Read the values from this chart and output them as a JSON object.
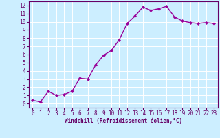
{
  "x": [
    0,
    1,
    2,
    3,
    4,
    5,
    6,
    7,
    8,
    9,
    10,
    11,
    12,
    13,
    14,
    15,
    16,
    17,
    18,
    19,
    20,
    21,
    22,
    23
  ],
  "y": [
    0.4,
    0.2,
    1.5,
    1.0,
    1.1,
    1.5,
    3.1,
    3.0,
    4.7,
    5.9,
    6.5,
    7.8,
    9.8,
    10.7,
    11.8,
    11.4,
    11.6,
    11.9,
    10.6,
    10.1,
    9.9,
    9.8,
    9.9,
    9.8
  ],
  "line_color": "#990099",
  "marker": "D",
  "marker_size": 2.0,
  "bg_color": "#cceeff",
  "grid_color": "#ffffff",
  "xlabel": "Windchill (Refroidissement éolien,°C)",
  "xlabel_color": "#660066",
  "tick_color": "#660066",
  "xlim": [
    -0.5,
    23.5
  ],
  "ylim": [
    -0.5,
    12.5
  ],
  "yticks": [
    0,
    1,
    2,
    3,
    4,
    5,
    6,
    7,
    8,
    9,
    10,
    11,
    12
  ],
  "xticks": [
    0,
    1,
    2,
    3,
    4,
    5,
    6,
    7,
    8,
    9,
    10,
    11,
    12,
    13,
    14,
    15,
    16,
    17,
    18,
    19,
    20,
    21,
    22,
    23
  ],
  "xtick_labels": [
    "0",
    "1",
    "2",
    "3",
    "4",
    "5",
    "6",
    "7",
    "8",
    "9",
    "10",
    "11",
    "12",
    "13",
    "14",
    "15",
    "16",
    "17",
    "18",
    "19",
    "20",
    "21",
    "22",
    "23"
  ],
  "spine_color": "#660066",
  "linewidth": 1.0,
  "tick_fontsize": 5.5,
  "xlabel_fontsize": 5.5
}
